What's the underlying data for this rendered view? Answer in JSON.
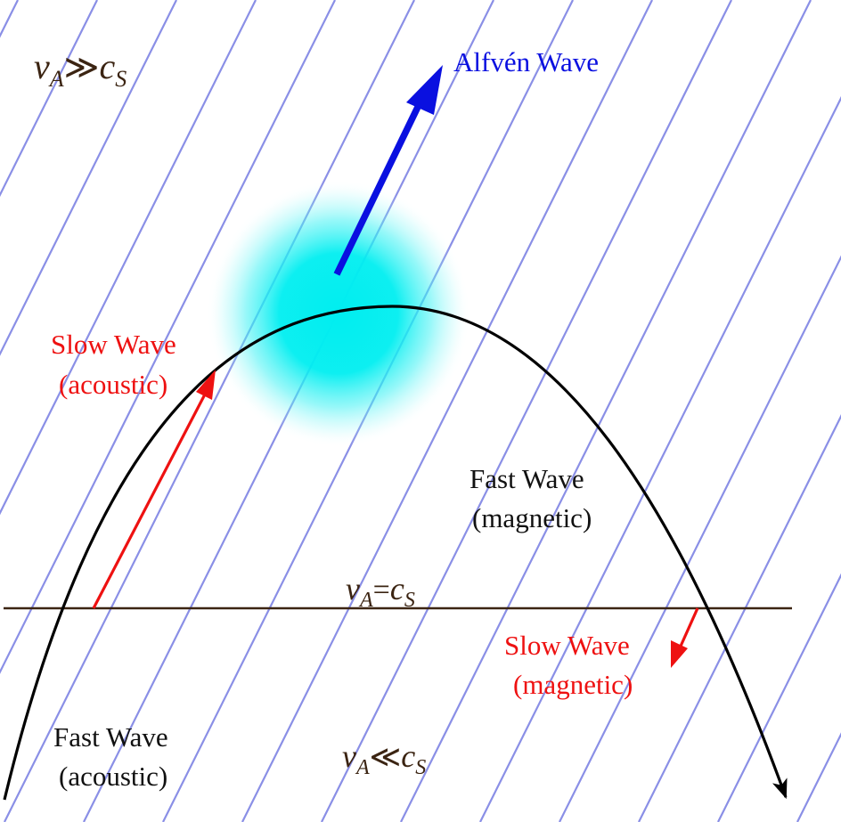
{
  "colors": {
    "field_lines": "#8a8fe6",
    "alfven": "#0a10e0",
    "slow": "#ee1111",
    "fast_curve": "#000000",
    "equipartition_line": "#3b2412",
    "regime_text": "#3b2412",
    "glow": "#00eef0",
    "label_dark": "#111111"
  },
  "regimes": {
    "upper": {
      "v": "v",
      "v_sub": "A",
      "rel": "≫",
      "c": "c",
      "c_sub": "S"
    },
    "middle": {
      "v": "v",
      "v_sub": "A",
      "rel": "=",
      "c": "c",
      "c_sub": "S"
    },
    "lower": {
      "v": "v",
      "v_sub": "A",
      "rel": "≪",
      "c": "c",
      "c_sub": "S"
    }
  },
  "labels": {
    "alfven": "Alfvén Wave",
    "slow_upper_line1": "Slow Wave",
    "slow_upper_line2": "(acoustic)",
    "fast_upper_line1": "Fast Wave",
    "fast_upper_line2": "(magnetic)",
    "slow_lower_line1": "Slow Wave",
    "slow_lower_line2": "(magnetic)",
    "fast_lower_line1": "Fast Wave",
    "fast_lower_line2": "(acoustic)"
  }
}
